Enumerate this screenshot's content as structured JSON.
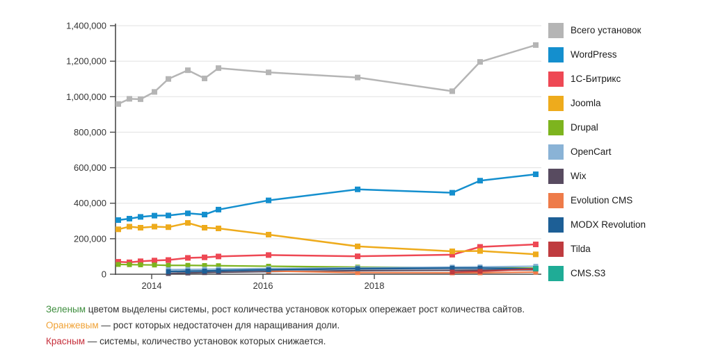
{
  "chart_data": {
    "type": "line",
    "title": "",
    "xlabel": "",
    "ylabel": "",
    "xlim": [
      2013.35,
      2021.0
    ],
    "ylim": [
      0,
      1400000
    ],
    "y_ticks": [
      0,
      200000,
      400000,
      600000,
      800000,
      1000000,
      1200000,
      1400000
    ],
    "x_ticks": [
      2014,
      2016,
      2018
    ],
    "grid": "horizontal",
    "legend_position": "right",
    "marker": "square",
    "series": [
      {
        "name": "Всего установок",
        "slug": "total-installs",
        "color": "#b5b5b5",
        "line_width": 2.5,
        "marker_size": 8,
        "x": [
          2013.4,
          2013.6,
          2013.8,
          2014.05,
          2014.3,
          2014.65,
          2014.95,
          2015.2,
          2016.1,
          2017.7,
          2019.4,
          2019.9,
          2020.9
        ],
        "y": [
          959000,
          988000,
          986000,
          1027000,
          1100000,
          1149000,
          1103000,
          1161000,
          1137000,
          1108000,
          1031000,
          1196000,
          1291000
        ]
      },
      {
        "name": "WordPress",
        "slug": "wordpress",
        "color": "#148fce",
        "line_width": 2.5,
        "marker_size": 8,
        "x": [
          2013.4,
          2013.6,
          2013.8,
          2014.05,
          2014.3,
          2014.65,
          2014.95,
          2015.2,
          2016.1,
          2017.7,
          2019.4,
          2019.9,
          2020.9
        ],
        "y": [
          305000,
          313000,
          323000,
          330000,
          331000,
          343000,
          336000,
          364000,
          416000,
          478000,
          459000,
          527000,
          563000
        ]
      },
      {
        "name": "1С-Битрикс",
        "slug": "1c-bitrix",
        "color": "#ee4854",
        "line_width": 2.5,
        "marker_size": 8,
        "x": [
          2013.4,
          2013.6,
          2013.8,
          2014.05,
          2014.3,
          2014.65,
          2014.95,
          2015.2,
          2016.1,
          2017.7,
          2019.4,
          2019.9,
          2020.9
        ],
        "y": [
          70000,
          67000,
          73000,
          77000,
          80000,
          92000,
          95000,
          100000,
          108000,
          101000,
          110000,
          154000,
          168000
        ]
      },
      {
        "name": "Joomla",
        "slug": "joomla",
        "color": "#eeab1c",
        "line_width": 2.5,
        "marker_size": 8,
        "x": [
          2013.4,
          2013.6,
          2013.8,
          2014.05,
          2014.3,
          2014.65,
          2014.95,
          2015.2,
          2016.1,
          2017.7,
          2019.4,
          2019.9,
          2020.9
        ],
        "y": [
          253000,
          268000,
          262000,
          268000,
          265000,
          289000,
          262000,
          258000,
          223000,
          157000,
          129000,
          131000,
          112000
        ]
      },
      {
        "name": "Drupal",
        "slug": "drupal",
        "color": "#7db41e",
        "line_width": 2.2,
        "marker_size": 7,
        "x": [
          2013.4,
          2013.6,
          2013.8,
          2014.05,
          2014.3,
          2014.65,
          2014.95,
          2015.2,
          2016.1,
          2017.7,
          2019.4,
          2019.9,
          2020.9
        ],
        "y": [
          55000,
          54000,
          53000,
          52000,
          50000,
          50000,
          49000,
          48000,
          45000,
          40000,
          37000,
          36000,
          34000
        ]
      },
      {
        "name": "OpenCart",
        "slug": "opencart",
        "color": "#8ab3d6",
        "line_width": 2.2,
        "marker_size": 7,
        "x": [
          2014.3,
          2014.65,
          2014.95,
          2015.2,
          2016.1,
          2017.7,
          2019.4,
          2019.9,
          2020.9
        ],
        "y": [
          26000,
          27000,
          28000,
          29000,
          32000,
          36000,
          40000,
          41000,
          45000
        ]
      },
      {
        "name": "Wix",
        "slug": "wix",
        "color": "#584b60",
        "line_width": 2.2,
        "marker_size": 7,
        "x": [
          2014.3,
          2014.65,
          2014.95,
          2015.2,
          2016.1,
          2017.7,
          2019.4,
          2019.9,
          2020.9
        ],
        "y": [
          4000,
          7000,
          9000,
          11000,
          15000,
          20000,
          22000,
          23000,
          25000
        ]
      },
      {
        "name": "Evolution CMS",
        "slug": "evolution-cms",
        "color": "#ee7b49",
        "line_width": 2.2,
        "marker_size": 7,
        "x": [
          2016.1,
          2017.7,
          2019.4,
          2019.9,
          2020.9
        ],
        "y": [
          18000,
          9000,
          8000,
          8000,
          12000
        ]
      },
      {
        "name": "MODX Revolution",
        "slug": "modx-revolution",
        "color": "#1d5f96",
        "line_width": 2.5,
        "marker_size": 7,
        "x": [
          2014.3,
          2014.65,
          2014.95,
          2015.2,
          2016.1,
          2017.7,
          2019.4,
          2019.9,
          2020.9
        ],
        "y": [
          15000,
          17000,
          18000,
          20000,
          25000,
          31000,
          34000,
          34000,
          30000
        ]
      },
      {
        "name": "Tilda",
        "slug": "tilda",
        "color": "#bf3b3f",
        "line_width": 2.2,
        "marker_size": 7,
        "x": [
          2019.4,
          2019.9,
          2020.9
        ],
        "y": [
          12000,
          16000,
          30000
        ]
      },
      {
        "name": "CMS.S3",
        "slug": "cms-s3",
        "color": "#1fac96",
        "line_width": 2.2,
        "marker_size": 8,
        "x": [
          2020.9
        ],
        "y": [
          32000
        ]
      }
    ]
  },
  "notes": [
    {
      "lead": "Зеленым",
      "lead_color": "#3e8e3e",
      "text": " цветом выделены системы, рост количества установок которых опережает рост количества сайтов."
    },
    {
      "lead": "Оранжевым",
      "lead_color": "#f0a236",
      "text": " — рост которых недостаточен для наращивания доли."
    },
    {
      "lead": "Красным",
      "lead_color": "#c62f3b",
      "text": " — системы, количество установок которых снижается."
    }
  ],
  "style": {
    "grid_color": "#e0e0e0",
    "axis_color": "#4a4a4a",
    "tick_label_color": "#333333"
  }
}
